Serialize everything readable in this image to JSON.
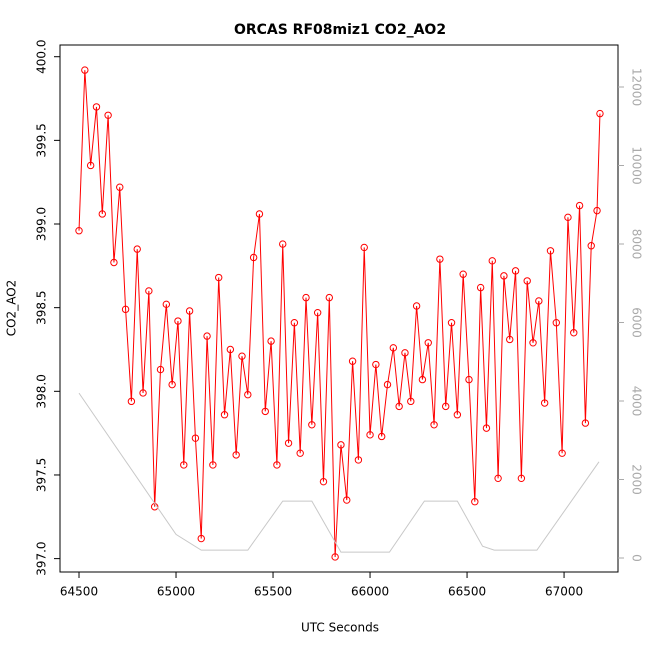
{
  "chart_data": {
    "type": "line",
    "title": "ORCAS RF08miz1 CO2_AO2",
    "x_label": "UTC Seconds",
    "y_label": "CO2_AO2",
    "xlim": [
      64402,
      67278
    ],
    "xticks": [
      64500,
      65000,
      65500,
      66000,
      66500,
      67000
    ],
    "ylim": [
      396.92,
      400.07
    ],
    "yticks": [
      {
        "value": 397,
        "label": "397.0"
      },
      {
        "value": 397.5,
        "label": "397.5"
      },
      {
        "value": 398,
        "label": "398.0"
      },
      {
        "value": 398.5,
        "label": "398.5"
      },
      {
        "value": 399,
        "label": "399.0"
      },
      {
        "value": 399.5,
        "label": "399.5"
      },
      {
        "value": 400,
        "label": "400.0"
      }
    ],
    "y2lim": [
      -357,
      13070
    ],
    "y2ticks": [
      0,
      2000,
      4000,
      6000,
      8000,
      10000,
      12000
    ],
    "series": [
      {
        "color": "#ff0000",
        "markers": true,
        "x": [
          64500,
          64530,
          64560,
          64590,
          64620,
          64650,
          64680,
          64710,
          64740,
          64770,
          64800,
          64830,
          64860,
          64890,
          64920,
          64950,
          64980,
          65010,
          65040,
          65070,
          65100,
          65130,
          65160,
          65190,
          65220,
          65250,
          65280,
          65310,
          65340,
          65370,
          65400,
          65430,
          65460,
          65490,
          65520,
          65550,
          65580,
          65610,
          65640,
          65670,
          65700,
          65730,
          65760,
          65790,
          65820,
          65850,
          65880,
          65910,
          65940,
          65970,
          66000,
          66030,
          66060,
          66090,
          66120,
          66150,
          66180,
          66210,
          66240,
          66270,
          66300,
          66330,
          66360,
          66390,
          66420,
          66450,
          66480,
          66510,
          66540,
          66570,
          66600,
          66630,
          66660,
          66690,
          66720,
          66750,
          66780,
          66810,
          66840,
          66870,
          66900,
          66930,
          66960,
          66990,
          67020,
          67050,
          67080,
          67110,
          67140,
          67170,
          67185
        ],
        "values": [
          398.96,
          399.92,
          399.35,
          399.7,
          399.06,
          399.65,
          398.77,
          399.22,
          398.49,
          397.94,
          398.85,
          397.99,
          398.6,
          397.31,
          398.13,
          398.52,
          398.04,
          398.42,
          397.56,
          398.48,
          397.72,
          397.12,
          398.33,
          397.56,
          398.68,
          397.86,
          398.25,
          397.62,
          398.21,
          397.98,
          398.8,
          399.06,
          397.88,
          398.3,
          397.56,
          398.88,
          397.69,
          398.41,
          397.63,
          398.56,
          397.8,
          398.47,
          397.46,
          398.56,
          397.01,
          397.68,
          397.35,
          398.18,
          397.59,
          398.86,
          397.74,
          398.16,
          397.73,
          398.04,
          398.26,
          397.91,
          398.23,
          397.94,
          398.51,
          398.07,
          398.29,
          397.8,
          398.79,
          397.91,
          398.41,
          397.86,
          398.7,
          398.07,
          397.34,
          398.62,
          397.78,
          398.78,
          397.48,
          398.69,
          398.31,
          398.72,
          397.48,
          398.66,
          398.29,
          398.54,
          397.93,
          398.84,
          398.41,
          397.63,
          399.04,
          398.35,
          399.11,
          397.81,
          398.87,
          399.08,
          399.66
        ]
      },
      {
        "color": "#c8c8c8",
        "axis": "y2",
        "markers": false,
        "x": [
          64500,
          65000,
          65130,
          65370,
          65550,
          65700,
          65850,
          66100,
          66280,
          66450,
          66580,
          66640,
          66860,
          67180
        ],
        "values": [
          4200,
          600,
          200,
          200,
          1450,
          1450,
          150,
          150,
          1450,
          1450,
          300,
          200,
          200,
          2450
        ]
      }
    ]
  }
}
